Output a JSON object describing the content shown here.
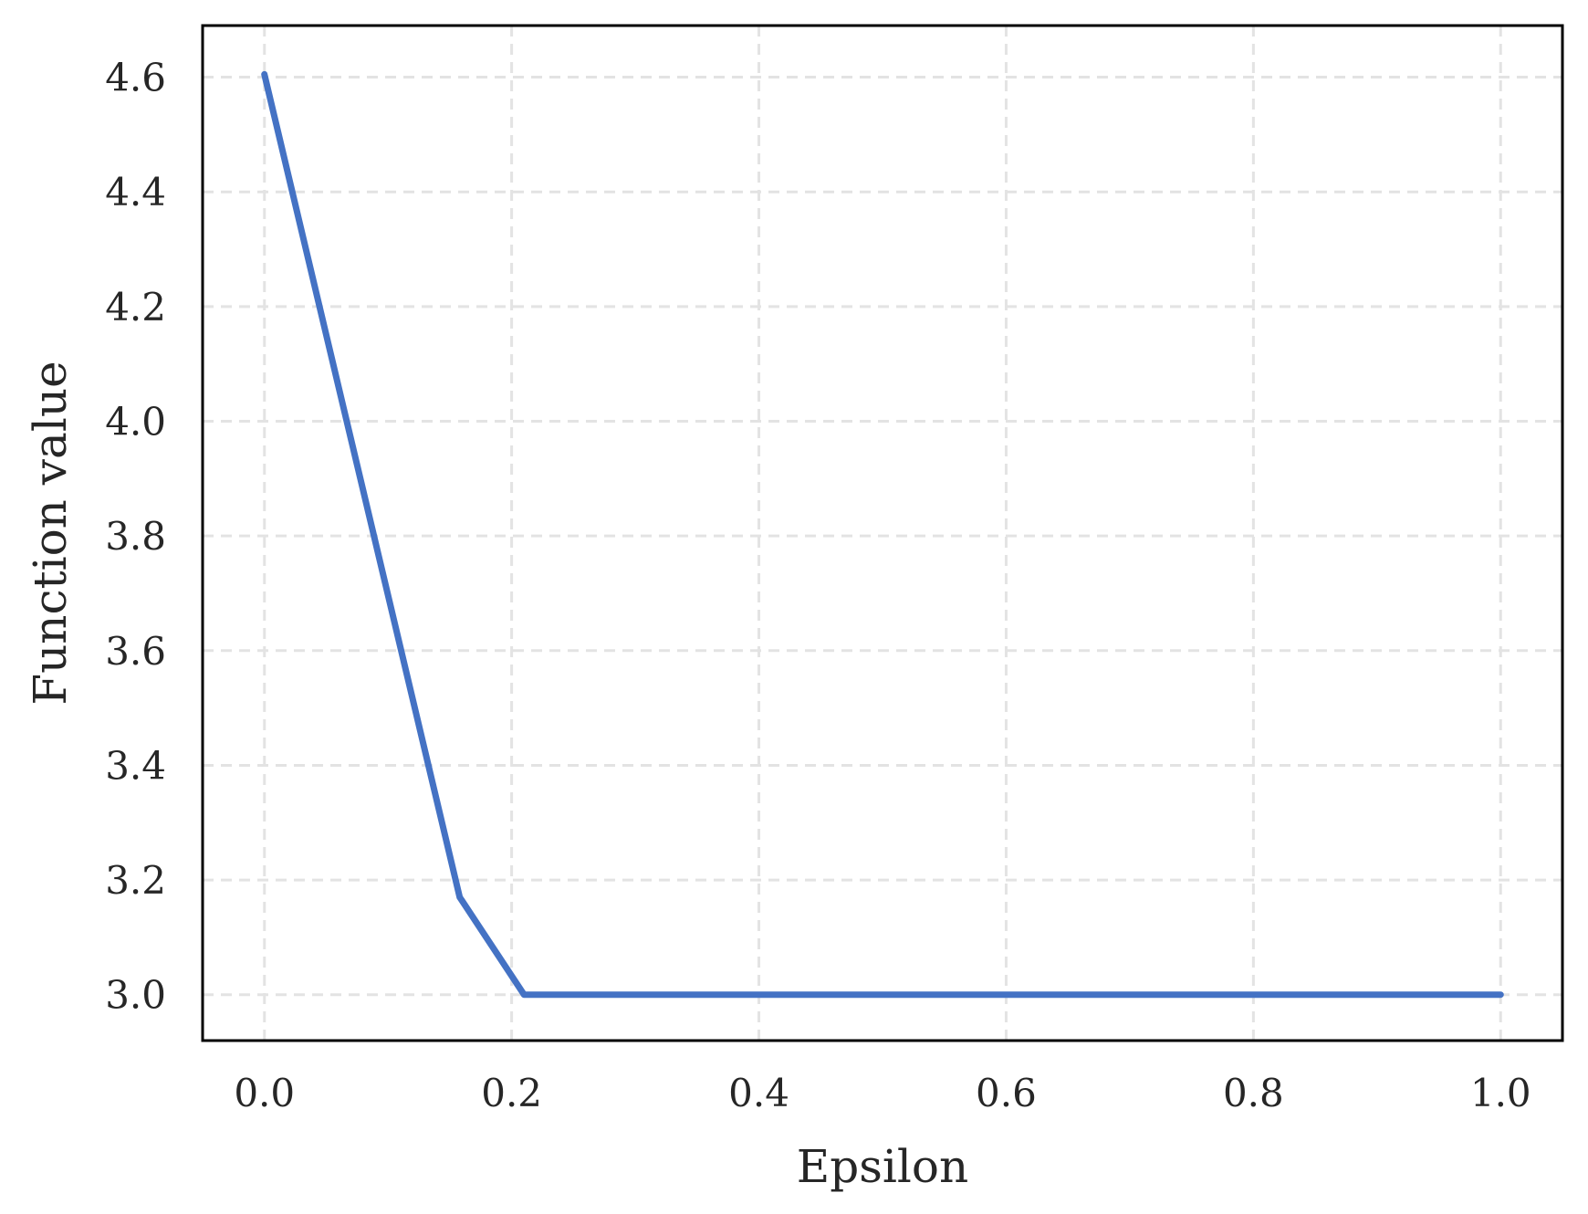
{
  "chart_data": {
    "type": "line",
    "title": "",
    "xlabel": "Epsilon",
    "ylabel": "Function value",
    "xlim": [
      -0.05,
      1.05
    ],
    "ylim": [
      2.92,
      4.69
    ],
    "xticks": [
      0.0,
      0.2,
      0.4,
      0.6,
      0.8,
      1.0
    ],
    "xtick_labels": [
      "0.0",
      "0.2",
      "0.4",
      "0.6",
      "0.8",
      "1.0"
    ],
    "yticks": [
      3.0,
      3.2,
      3.4,
      3.6,
      3.8,
      4.0,
      4.2,
      4.4,
      4.6
    ],
    "ytick_labels": [
      "3.0",
      "3.2",
      "3.4",
      "3.6",
      "3.8",
      "4.0",
      "4.2",
      "4.4",
      "4.6"
    ],
    "grid": true,
    "series": [
      {
        "color": "#4472c4",
        "x": [
          0.0,
          0.158,
          0.21,
          0.3,
          0.4,
          0.5,
          0.6,
          0.7,
          0.8,
          0.9,
          1.0
        ],
        "y": [
          4.605,
          3.17,
          3.0,
          3.0,
          3.0,
          3.0,
          3.0,
          3.0,
          3.0,
          3.0,
          3.0
        ]
      }
    ]
  }
}
